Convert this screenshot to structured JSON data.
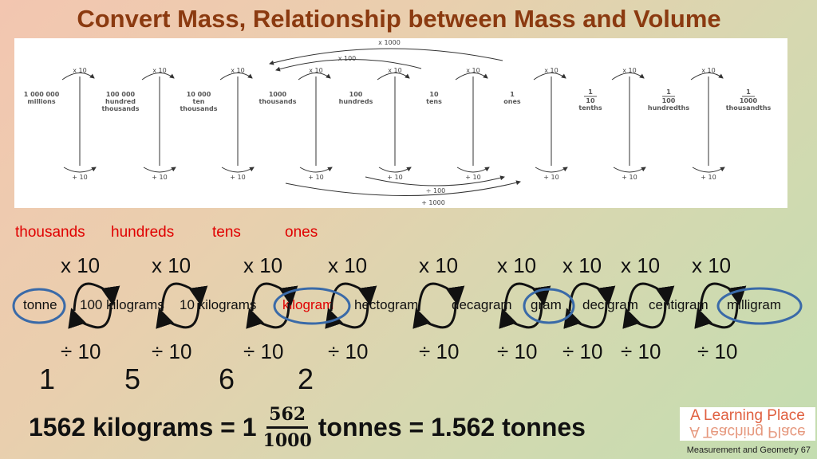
{
  "title": "Convert Mass, Relationship between Mass and Volume",
  "place_value_chart": {
    "columns": [
      {
        "value": "1 000 000",
        "name": "millions"
      },
      {
        "value": "100 000",
        "name": "hundred thousands"
      },
      {
        "value": "10 000",
        "name": "ten thousands"
      },
      {
        "value": "1000",
        "name": "thousands"
      },
      {
        "value": "100",
        "name": "hundreds"
      },
      {
        "value": "10",
        "name": "tens"
      },
      {
        "value": "1",
        "name": "ones"
      },
      {
        "value": "1/10",
        "name": "tenths"
      },
      {
        "value": "1/100",
        "name": "hundredths"
      },
      {
        "value": "1/1000",
        "name": "thousandths"
      }
    ],
    "multiply_label": "x 10",
    "divide_label": "+ 10",
    "top_arcs": [
      "x 1000",
      "x 100"
    ],
    "bottom_arcs": [
      "÷ 100",
      "+ 1000"
    ]
  },
  "place_headers": [
    "thousands",
    "hundreds",
    "tens",
    "ones"
  ],
  "units": [
    "tonne",
    "100 kilograms",
    "10 kilograms",
    "kilogram",
    "hectogram",
    "decagram",
    "gram",
    "decigram",
    "centigram",
    "milligram"
  ],
  "multiply_labels": [
    "x 10",
    "x 10",
    "x 10",
    "x 10",
    "x 10",
    "x 10",
    "x 10",
    "x 10",
    "x 10"
  ],
  "divide_labels": [
    "÷ 10",
    "÷ 10",
    "÷ 10",
    "÷ 10",
    "÷ 10",
    "÷ 10",
    "÷ 10",
    "÷ 10",
    "÷ 10"
  ],
  "digits": [
    "1",
    "5",
    "6",
    "2"
  ],
  "equation": {
    "left": "1562 kilograms = 1",
    "numerator": "562",
    "denominator": "1000",
    "right": "tonnes = 1.562 tonnes"
  },
  "logo": {
    "text": "A Learning Place",
    "mirror_text": "A Teaching Place"
  },
  "footer": "Measurement and Geometry 67",
  "colors": {
    "title": "#8b3a10",
    "highlight": "#e00000",
    "circle": "#3a6aa8"
  }
}
